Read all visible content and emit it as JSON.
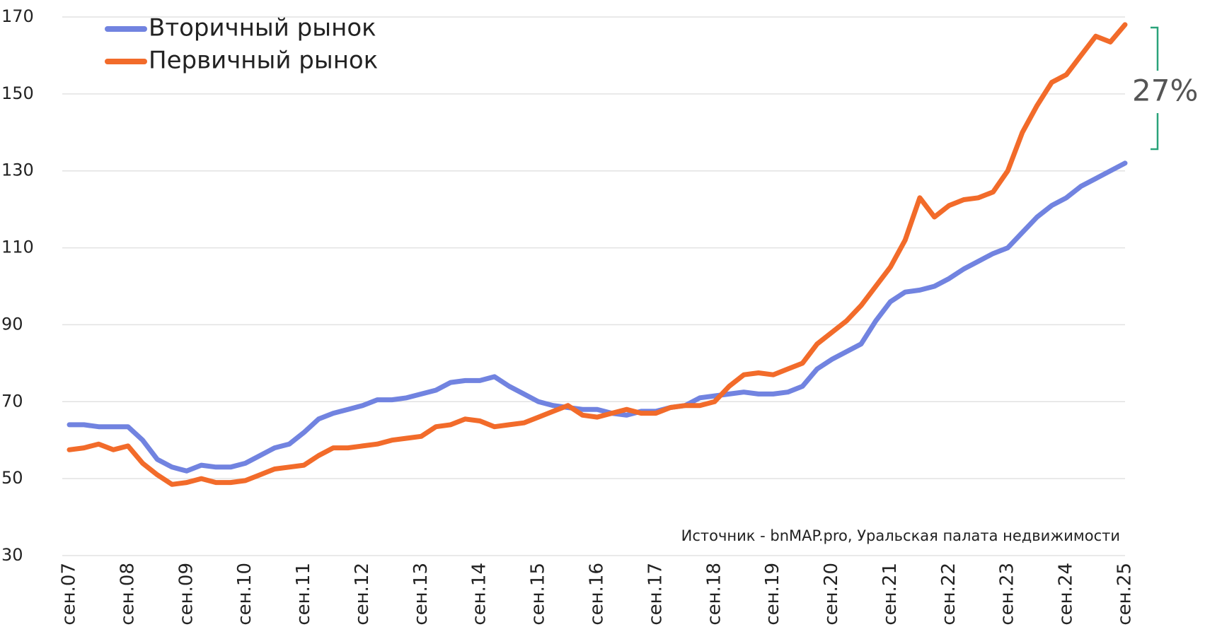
{
  "chart_data": {
    "type": "line",
    "categories": [
      "сен.07",
      null,
      null,
      null,
      "сен.08",
      null,
      null,
      null,
      "сен.09",
      null,
      null,
      null,
      "сен.10",
      null,
      null,
      null,
      "сен.11",
      null,
      null,
      null,
      "сен.12",
      null,
      null,
      null,
      "сен.13",
      null,
      null,
      null,
      "сен.14",
      null,
      null,
      null,
      "сен.15",
      null,
      null,
      null,
      "сен.16",
      null,
      null,
      null,
      "сен.17",
      null,
      null,
      null,
      "сен.18",
      null,
      null,
      null,
      "сен.19",
      null,
      null,
      null,
      "сен.20",
      null,
      null,
      null,
      "сен.21",
      null,
      null,
      null,
      "сен.22",
      null,
      null,
      null,
      "сен.23",
      null,
      null,
      null,
      "сен.24",
      null,
      null,
      null,
      "сен.25"
    ],
    "series": [
      {
        "name": "Вторичный рынок",
        "color": "#7183e0",
        "values": [
          64,
          64,
          63.5,
          63.5,
          63.5,
          60,
          55,
          53,
          52,
          53.5,
          53,
          53,
          54,
          56,
          58,
          59,
          62,
          65.5,
          67,
          68,
          69,
          70.5,
          70.5,
          71,
          72,
          73,
          75,
          75.5,
          75.5,
          76.5,
          74,
          72,
          70,
          69,
          68.5,
          68,
          68,
          67,
          66.5,
          67.5,
          67.5,
          68.5,
          69,
          71,
          71.5,
          72,
          72.5,
          72,
          72,
          72.5,
          74,
          78.5,
          81,
          83,
          85,
          91,
          96,
          98.5,
          99,
          100,
          102,
          104.5,
          106.5,
          108.5,
          110,
          114,
          118,
          121,
          123,
          126,
          128,
          130,
          132
        ]
      },
      {
        "name": "Первичный рынок",
        "color": "#f26b2a",
        "values": [
          57.5,
          58,
          59,
          57.5,
          58.5,
          54,
          51,
          48.5,
          49,
          50,
          49,
          49,
          49.5,
          51,
          52.5,
          53,
          53.5,
          56,
          58,
          58,
          58.5,
          59,
          60,
          60.5,
          61,
          63.5,
          64,
          65.5,
          65,
          63.5,
          64,
          64.5,
          66,
          67.5,
          69,
          66.5,
          66,
          67,
          68,
          67,
          67,
          68.5,
          69,
          69,
          70,
          74,
          77,
          77.5,
          77,
          78.5,
          80,
          85,
          88,
          91,
          95,
          100,
          105,
          112,
          123,
          118,
          121,
          122.5,
          123,
          124.5,
          130,
          140,
          147,
          153,
          155,
          160,
          165,
          163.5,
          168
        ]
      }
    ],
    "ylim": [
      30,
      170
    ],
    "yticks": [
      30,
      50,
      70,
      90,
      110,
      130,
      150,
      170
    ],
    "grid": true,
    "legend": "top-left",
    "annotations": [
      "27%",
      "Источник - bnMAP.pro, Уральская палата недвижимости"
    ]
  }
}
